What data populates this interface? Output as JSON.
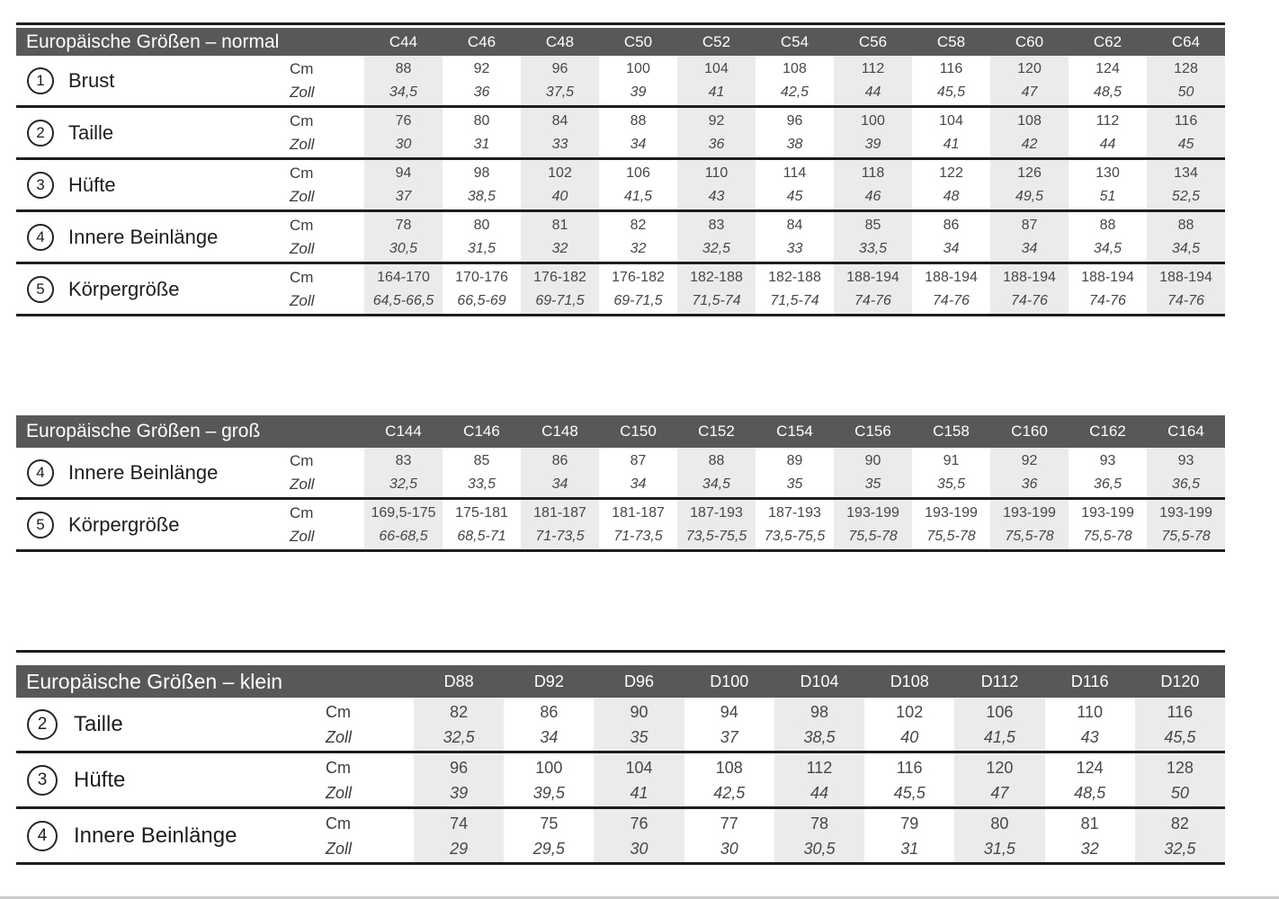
{
  "colors": {
    "header_bg": "#58575a",
    "header_text": "#ffffff",
    "band": "#ebebeb",
    "value_text": "#47464a",
    "label_text": "#1d1d1b",
    "line": "#1e1e1e"
  },
  "unit_labels": {
    "cm": "Cm",
    "zoll": "Zoll"
  },
  "tables": [
    {
      "title": "Europäische Größen – normal",
      "sizes": [
        "C44",
        "C46",
        "C48",
        "C50",
        "C52",
        "C54",
        "C56",
        "C58",
        "C60",
        "C62",
        "C64"
      ],
      "rows": [
        {
          "num": "1",
          "label": "Brust",
          "cm": [
            "88",
            "92",
            "96",
            "100",
            "104",
            "108",
            "112",
            "116",
            "120",
            "124",
            "128"
          ],
          "zoll": [
            "34,5",
            "36",
            "37,5",
            "39",
            "41",
            "42,5",
            "44",
            "45,5",
            "47",
            "48,5",
            "50"
          ]
        },
        {
          "num": "2",
          "label": "Taille",
          "cm": [
            "76",
            "80",
            "84",
            "88",
            "92",
            "96",
            "100",
            "104",
            "108",
            "112",
            "116"
          ],
          "zoll": [
            "30",
            "31",
            "33",
            "34",
            "36",
            "38",
            "39",
            "41",
            "42",
            "44",
            "45"
          ]
        },
        {
          "num": "3",
          "label": "Hüfte",
          "cm": [
            "94",
            "98",
            "102",
            "106",
            "110",
            "114",
            "118",
            "122",
            "126",
            "130",
            "134"
          ],
          "zoll": [
            "37",
            "38,5",
            "40",
            "41,5",
            "43",
            "45",
            "46",
            "48",
            "49,5",
            "51",
            "52,5"
          ]
        },
        {
          "num": "4",
          "label": "Innere Beinlänge",
          "cm": [
            "78",
            "80",
            "81",
            "82",
            "83",
            "84",
            "85",
            "86",
            "87",
            "88",
            "88"
          ],
          "zoll": [
            "30,5",
            "31,5",
            "32",
            "32",
            "32,5",
            "33",
            "33,5",
            "34",
            "34",
            "34,5",
            "34,5"
          ]
        },
        {
          "num": "5",
          "label": "Körpergröße",
          "cm": [
            "164-170",
            "170-176",
            "176-182",
            "176-182",
            "182-188",
            "182-188",
            "188-194",
            "188-194",
            "188-194",
            "188-194",
            "188-194"
          ],
          "zoll": [
            "64,5-66,5",
            "66,5-69",
            "69-71,5",
            "69-71,5",
            "71,5-74",
            "71,5-74",
            "74-76",
            "74-76",
            "74-76",
            "74-76",
            "74-76"
          ]
        }
      ]
    },
    {
      "title": "Europäische Größen – groß",
      "sizes": [
        "C144",
        "C146",
        "C148",
        "C150",
        "C152",
        "C154",
        "C156",
        "C158",
        "C160",
        "C162",
        "C164"
      ],
      "rows": [
        {
          "num": "4",
          "label": "Innere Beinlänge",
          "cm": [
            "83",
            "85",
            "86",
            "87",
            "88",
            "89",
            "90",
            "91",
            "92",
            "93",
            "93"
          ],
          "zoll": [
            "32,5",
            "33,5",
            "34",
            "34",
            "34,5",
            "35",
            "35",
            "35,5",
            "36",
            "36,5",
            "36,5"
          ]
        },
        {
          "num": "5",
          "label": "Körpergröße",
          "cm": [
            "169,5-175",
            "175-181",
            "181-187",
            "181-187",
            "187-193",
            "187-193",
            "193-199",
            "193-199",
            "193-199",
            "193-199",
            "193-199"
          ],
          "zoll": [
            "66-68,5",
            "68,5-71",
            "71-73,5",
            "71-73,5",
            "73,5-75,5",
            "73,5-75,5",
            "75,5-78",
            "75,5-78",
            "75,5-78",
            "75,5-78",
            "75,5-78"
          ]
        }
      ]
    },
    {
      "title": "Europäische Größen – klein",
      "sizes": [
        "D88",
        "D92",
        "D96",
        "D100",
        "D104",
        "D108",
        "D112",
        "D116",
        "D120"
      ],
      "rows": [
        {
          "num": "2",
          "label": "Taille",
          "cm": [
            "82",
            "86",
            "90",
            "94",
            "98",
            "102",
            "106",
            "110",
            "116"
          ],
          "zoll": [
            "32,5",
            "34",
            "35",
            "37",
            "38,5",
            "40",
            "41,5",
            "43",
            "45,5"
          ]
        },
        {
          "num": "3",
          "label": "Hüfte",
          "cm": [
            "96",
            "100",
            "104",
            "108",
            "112",
            "116",
            "120",
            "124",
            "128"
          ],
          "zoll": [
            "39",
            "39,5",
            "41",
            "42,5",
            "44",
            "45,5",
            "47",
            "48,5",
            "50"
          ]
        },
        {
          "num": "4",
          "label": "Innere Beinlänge",
          "cm": [
            "74",
            "75",
            "76",
            "77",
            "78",
            "79",
            "80",
            "81",
            "82"
          ],
          "zoll": [
            "29",
            "29,5",
            "30",
            "30",
            "30,5",
            "31",
            "31,5",
            "32",
            "32,5"
          ]
        }
      ]
    }
  ]
}
